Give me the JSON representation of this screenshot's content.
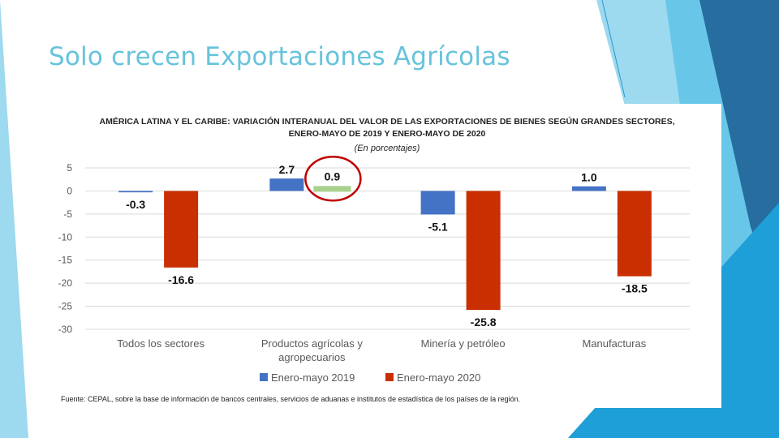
{
  "slide": {
    "title": "Solo crecen Exportaciones Agrícolas"
  },
  "theme": {
    "title_color": "#67c3dc",
    "deco_colors": [
      "#9dd9ef",
      "#5fc3e8",
      "#2d97cf",
      "#276da0",
      "#1f9fd8"
    ]
  },
  "chart_data": {
    "type": "bar",
    "title_lines": [
      "AMÉRICA LATINA Y EL CARIBE: VARIACIÓN INTERANUAL DEL VALOR DE LAS EXPORTACIONES DE BIENES SEGÚN GRANDES SECTORES,",
      "ENERO-MAYO DE 2019 Y ENERO-MAYO DE 2020"
    ],
    "subtitle": "(En porcentajes)",
    "categories": [
      [
        "Todos los sectores"
      ],
      [
        "Productos agrícolas y",
        "agropecuarios"
      ],
      [
        "Minería y petróleo"
      ],
      [
        "Manufacturas"
      ]
    ],
    "series": [
      {
        "name": "Enero-mayo 2019",
        "color": "#4472c4",
        "values": [
          -0.3,
          2.7,
          -5.1,
          1.0
        ],
        "labels": [
          "-0.3",
          "2.7",
          "-5.1",
          "1.0"
        ]
      },
      {
        "name": "Enero-mayo 2020",
        "color": "#c92f00",
        "values": [
          -16.6,
          0.9,
          -25.8,
          -18.5
        ],
        "labels": [
          "-16.6",
          "0.9",
          "-25.8",
          "-18.5"
        ]
      }
    ],
    "highlight": {
      "series": 1,
      "category": 1,
      "bar_color": "#a9d18e",
      "circle_color": "#c00000"
    },
    "y_ticks": [
      "5",
      "0",
      "-5",
      "-10",
      "-15",
      "-20",
      "-25",
      "-30"
    ],
    "ylim": [
      -30,
      5
    ],
    "ylabel": "",
    "xlabel": "",
    "grid": true,
    "legend_position": "bottom-center",
    "source": "Fuente: CEPAL, sobre la base de información de bancos centrales, servicios de aduanas e institutos de estadística de los países de la región."
  }
}
